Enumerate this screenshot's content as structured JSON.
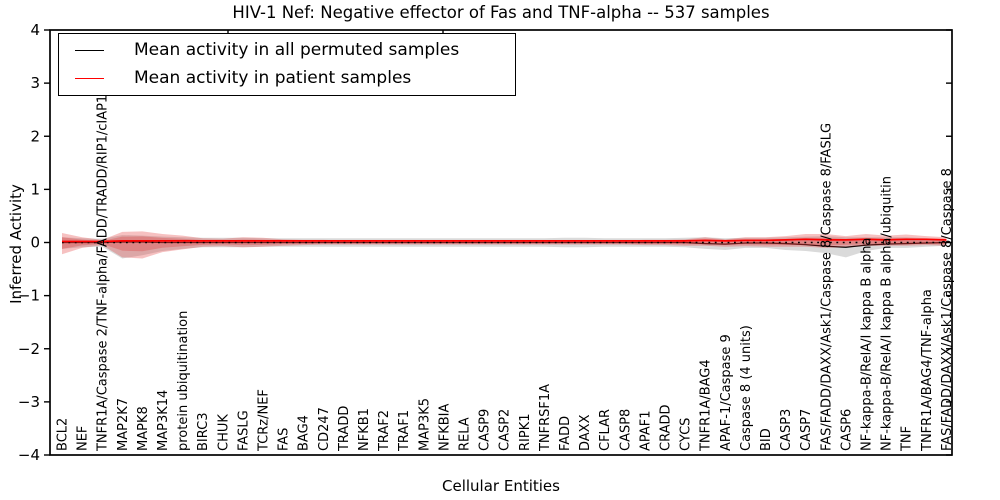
{
  "figure": {
    "title": "HIV-1 Nef: Negative effector of Fas and TNF-alpha -- 537 samples",
    "xlabel": "Cellular Entities",
    "ylabel": "Inferred Activity"
  },
  "legend": {
    "items": [
      {
        "name": "permuted",
        "label": "Mean activity in all permuted samples",
        "color": "#000000"
      },
      {
        "name": "patient",
        "label": "Mean activity in patient samples",
        "color": "#ff0000"
      }
    ]
  },
  "chart_data": {
    "type": "line",
    "title": "HIV-1 Nef: Negative effector of Fas and TNF-alpha -- 537 samples",
    "xlabel": "Cellular Entities",
    "ylabel": "Inferred Activity",
    "ylim": [
      -4,
      4
    ],
    "grid": false,
    "legend_position": "upper left",
    "ytick_labels": [
      "4",
      "3",
      "2",
      "1",
      "0",
      "−1",
      "−2",
      "−3",
      "−4"
    ],
    "ytick_values": [
      4,
      3,
      2,
      1,
      0,
      -1,
      -2,
      -3,
      -4
    ],
    "zero_line": {
      "y": 0,
      "style": "dotted",
      "color": "#000000"
    },
    "categories": [
      "BCL2",
      "NEF",
      "TNFR1A/Caspase 2/TNF-alpha/FADD/TRADD/RIP1/cIAP1/2/TRAF2",
      "MAP2K7",
      "MAPK8",
      "MAP3K14",
      "protein ubiquitination",
      "BIRC3",
      "CHUK",
      "FASLG",
      "TCRz/NEF",
      "FAS",
      "BAG4",
      "CD247",
      "TRADD",
      "NFKB1",
      "TRAF2",
      "TRAF1",
      "MAP3K5",
      "NFKBIA",
      "RELA",
      "CASP9",
      "CASP2",
      "RIPK1",
      "TNFRSF1A",
      "FADD",
      "DAXX",
      "CFLAR",
      "CASP8",
      "APAF1",
      "CRADD",
      "CYCS",
      "TNFR1A/BAG4",
      "APAF-1/Caspase 9",
      "Caspase 8 (4 units)",
      "BID",
      "CASP3",
      "CASP7",
      "FAS/FADD/DAXX/Ask1/Caspase 8/Caspase 8/FASLG",
      "CASP6",
      "NF-kappa-B/RelA/I kappa B alpha",
      "NF-kappa-B/RelA/I kappa B alpha/ubiquitin",
      "TNF",
      "TNFR1A/BAG4/TNF-alpha",
      "FAS/FADD/DAXX/Ask1/Caspase 8/Caspase 8"
    ],
    "series": [
      {
        "name": "Mean activity in all permuted samples",
        "color": "#000000",
        "values": [
          0,
          0,
          0,
          0.01,
          0.01,
          0,
          0,
          0,
          0,
          0,
          0,
          0,
          0,
          0,
          0,
          0,
          0,
          0,
          0,
          0,
          0,
          0,
          0,
          0,
          0,
          0,
          0,
          0,
          0,
          0,
          0,
          0,
          -0.02,
          -0.03,
          -0.01,
          -0.01,
          -0.02,
          -0.04,
          -0.07,
          -0.09,
          -0.05,
          -0.03,
          -0.02,
          -0.01,
          0
        ]
      },
      {
        "name": "Mean activity in patient samples",
        "color": "#ff0000",
        "values": [
          0.02,
          0.02,
          0.02,
          0.03,
          0.03,
          0.03,
          0.03,
          0.03,
          0.03,
          0.03,
          0.03,
          0.03,
          0.03,
          0.03,
          0.03,
          0.03,
          0.03,
          0.03,
          0.03,
          0.03,
          0.03,
          0.03,
          0.03,
          0.03,
          0.03,
          0.03,
          0.03,
          0.03,
          0.03,
          0.03,
          0.03,
          0.03,
          0.04,
          0.03,
          0.04,
          0.04,
          0.05,
          0.06,
          0.05,
          0.05,
          0.06,
          0.05,
          0.06,
          0.06,
          0.05
        ]
      }
    ],
    "bands": [
      {
        "name": "permuted-range",
        "color": "#8c8c8c",
        "opacity": 0.32,
        "upper": [
          0.1,
          0.08,
          0.07,
          0.14,
          0.13,
          0.11,
          0.1,
          0.09,
          0.09,
          0.09,
          0.08,
          0.08,
          0.08,
          0.08,
          0.08,
          0.08,
          0.08,
          0.08,
          0.08,
          0.08,
          0.08,
          0.08,
          0.08,
          0.08,
          0.08,
          0.09,
          0.09,
          0.08,
          0.08,
          0.08,
          0.08,
          0.09,
          0.1,
          0.08,
          0.09,
          0.09,
          0.1,
          0.11,
          0.12,
          0.1,
          0.1,
          0.1,
          0.1,
          0.08,
          0.06
        ],
        "lower": [
          -0.12,
          -0.09,
          -0.08,
          -0.3,
          -0.24,
          -0.16,
          -0.12,
          -0.09,
          -0.09,
          -0.09,
          -0.08,
          -0.08,
          -0.08,
          -0.08,
          -0.08,
          -0.08,
          -0.08,
          -0.08,
          -0.08,
          -0.08,
          -0.08,
          -0.08,
          -0.08,
          -0.08,
          -0.08,
          -0.09,
          -0.09,
          -0.08,
          -0.08,
          -0.08,
          -0.08,
          -0.09,
          -0.12,
          -0.14,
          -0.1,
          -0.1,
          -0.14,
          -0.16,
          -0.2,
          -0.28,
          -0.16,
          -0.1,
          -0.1,
          -0.08,
          -0.06
        ]
      },
      {
        "name": "patient-range",
        "color": "#e03131",
        "opacity": 0.3,
        "upper": [
          0.18,
          0.1,
          0.05,
          0.2,
          0.21,
          0.16,
          0.13,
          0.08,
          0.07,
          0.1,
          0.09,
          0.06,
          0.05,
          0.05,
          0.04,
          0.04,
          0.04,
          0.04,
          0.04,
          0.04,
          0.04,
          0.04,
          0.04,
          0.04,
          0.04,
          0.04,
          0.04,
          0.04,
          0.04,
          0.05,
          0.05,
          0.06,
          0.1,
          0.06,
          0.1,
          0.1,
          0.12,
          0.16,
          0.16,
          0.12,
          0.16,
          0.13,
          0.15,
          0.12,
          0.1
        ],
        "lower": [
          -0.22,
          -0.1,
          -0.05,
          -0.28,
          -0.3,
          -0.18,
          -0.13,
          -0.08,
          -0.07,
          -0.09,
          -0.08,
          -0.06,
          -0.05,
          -0.04,
          -0.04,
          -0.04,
          -0.04,
          -0.04,
          -0.04,
          -0.04,
          -0.04,
          -0.04,
          -0.04,
          -0.04,
          -0.04,
          -0.04,
          -0.04,
          -0.04,
          -0.04,
          -0.05,
          -0.05,
          -0.06,
          -0.06,
          -0.08,
          -0.07,
          -0.08,
          -0.08,
          -0.08,
          -0.1,
          -0.08,
          -0.06,
          -0.06,
          -0.06,
          -0.05,
          -0.06
        ]
      }
    ],
    "top_tick_x": [
      228,
      443
    ]
  }
}
